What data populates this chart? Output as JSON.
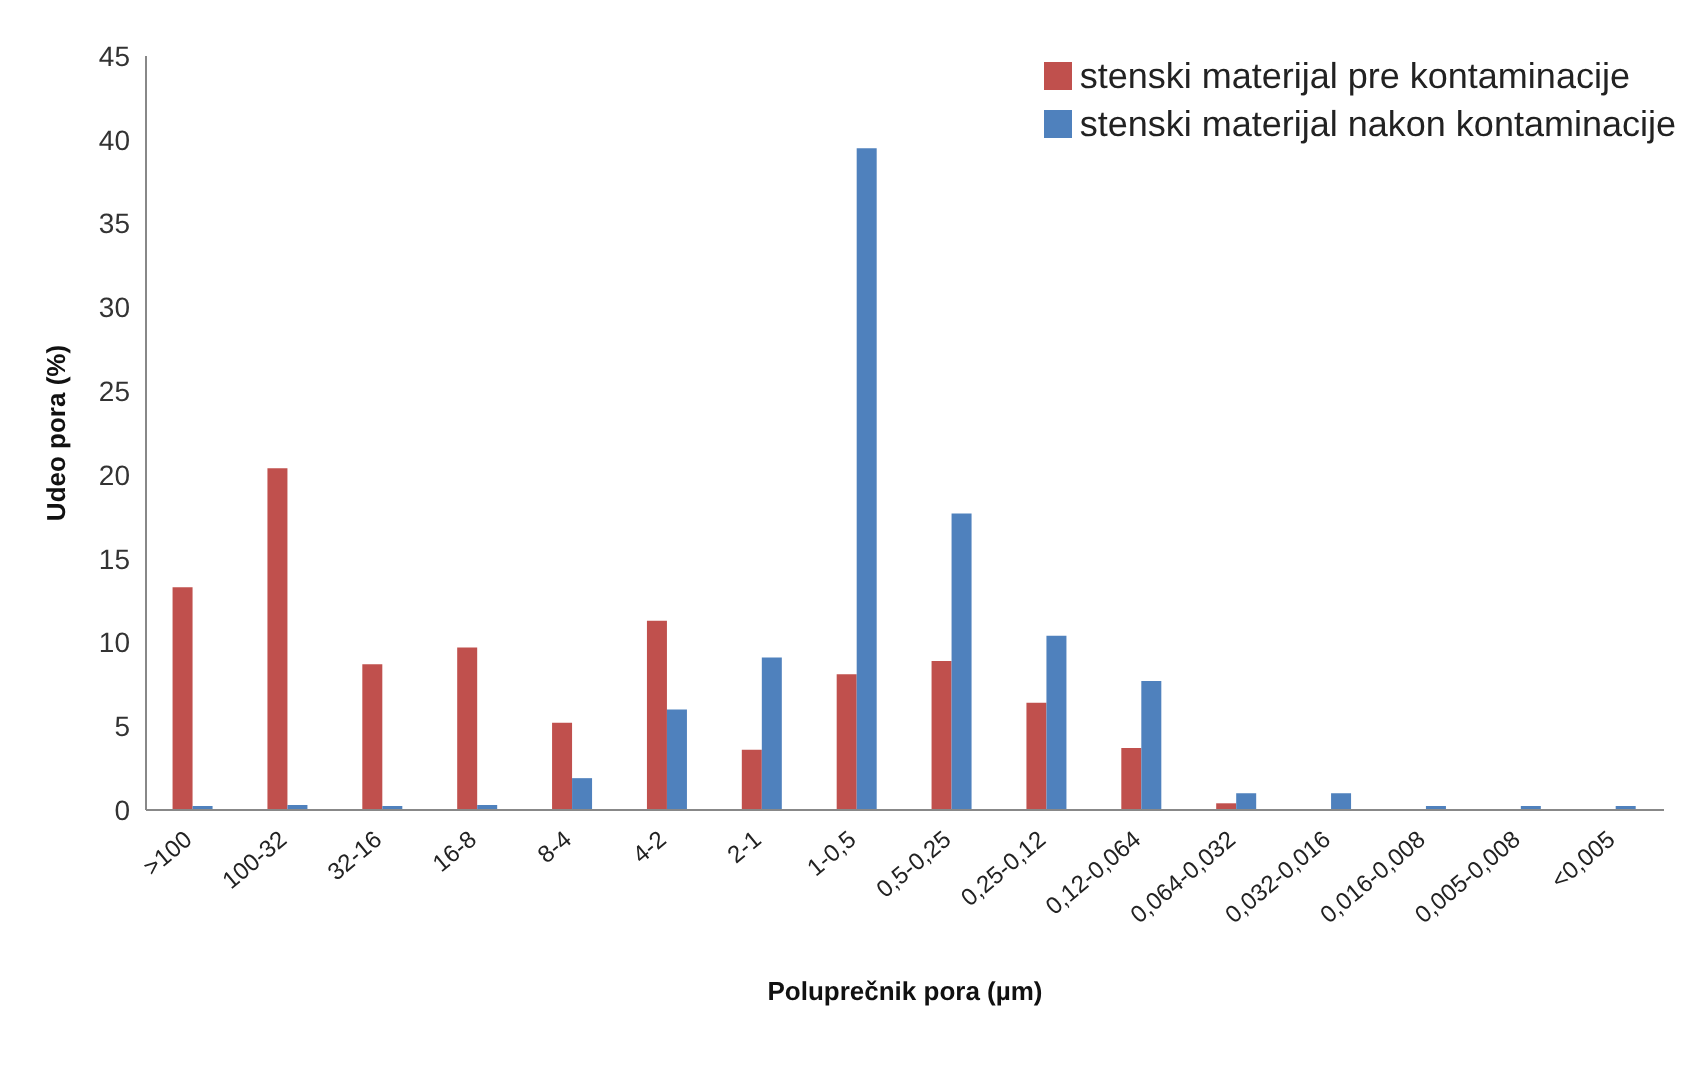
{
  "chart_data": {
    "type": "bar",
    "xlabel": "Poluprečnik pora (µm)",
    "ylabel": "Udeo pora (%)",
    "categories": [
      ">100",
      "100-32",
      "32-16",
      "16-8",
      "8-4",
      "4-2",
      "2-1",
      "1-0,5",
      "0,5-0,25",
      "0,25-0,12",
      "0,12-0,064",
      "0,064-0,032",
      "0,032-0,016",
      "0,016-0,008",
      "0,005-0,008",
      "<0,005"
    ],
    "series": [
      {
        "name": "stenski materijal pre kontaminacije",
        "color": "#c0504d",
        "values": [
          13.3,
          20.4,
          8.7,
          9.7,
          5.2,
          11.3,
          3.6,
          8.1,
          8.9,
          6.4,
          3.7,
          0.4,
          0,
          0,
          0,
          0
        ]
      },
      {
        "name": "stenski materijal nakon kontaminacije",
        "color": "#4f81bd",
        "values": [
          0.2,
          0.3,
          0.2,
          0.3,
          1.9,
          6.0,
          9.1,
          39.5,
          17.7,
          10.4,
          7.7,
          1.0,
          1.0,
          0.2,
          0.2,
          0.2
        ]
      }
    ],
    "ylim": [
      0,
      45
    ],
    "yticks": [
      0,
      5,
      10,
      15,
      20,
      25,
      30,
      35,
      40,
      45
    ],
    "grid": false,
    "legend": "top right"
  }
}
